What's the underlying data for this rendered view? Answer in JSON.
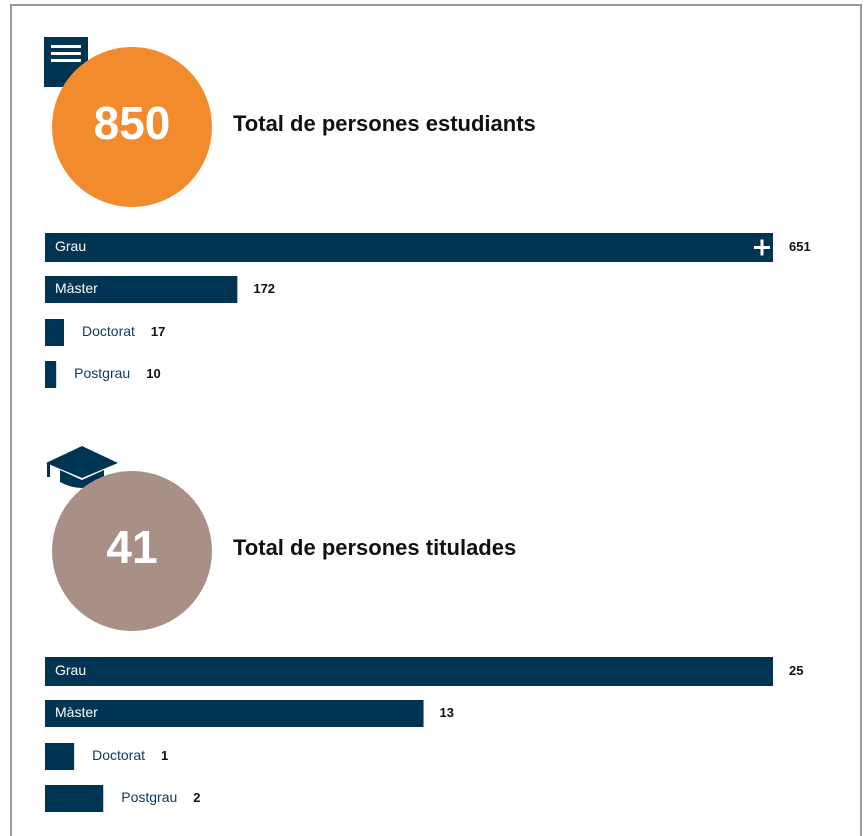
{
  "chart_data": [
    {
      "type": "bar",
      "total": 850,
      "title": "Total de persones estudiants",
      "circle_color": "#f28a2e",
      "color": "#003453",
      "categories": [
        "Grau",
        "Màster",
        "Doctorat",
        "Postgrau"
      ],
      "values": [
        651,
        172,
        17,
        10
      ]
    },
    {
      "type": "bar",
      "total": 41,
      "title": "Total de persones titulades",
      "circle_color": "#a89087",
      "color": "#003453",
      "categories": [
        "Grau",
        "Màster",
        "Doctorat",
        "Postgrau"
      ],
      "values": [
        25,
        13,
        1,
        2
      ]
    }
  ]
}
